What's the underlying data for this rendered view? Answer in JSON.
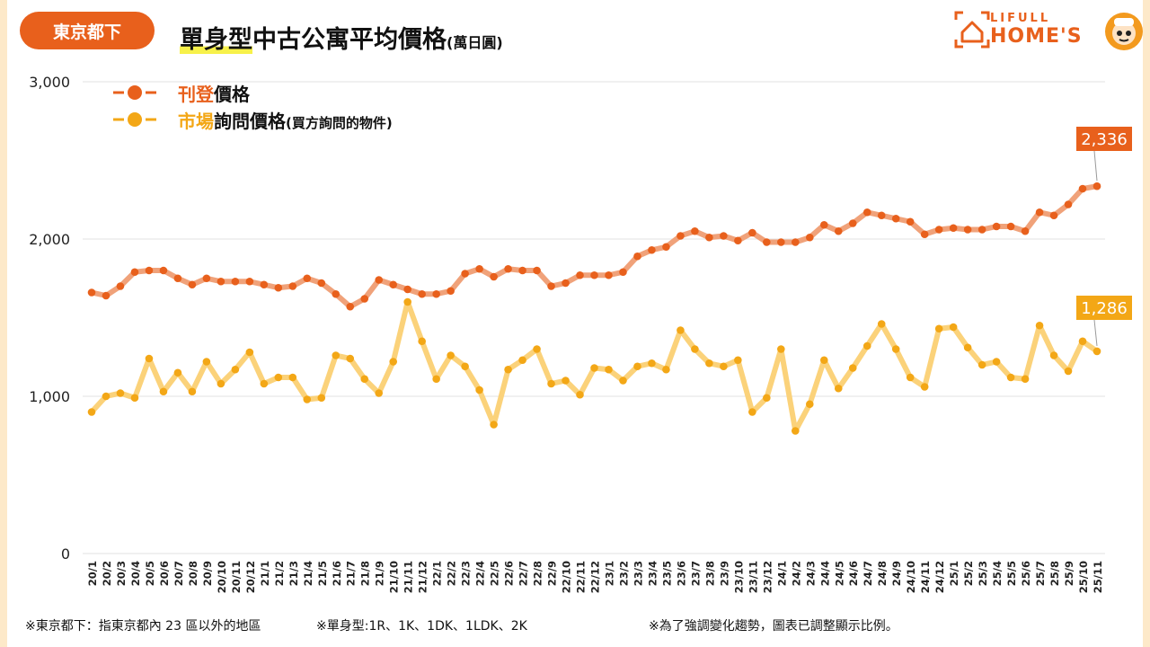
{
  "header": {
    "region_badge": "東京都下",
    "title_highlight": "單身型",
    "title_rest": "中古公寓平均價格",
    "title_unit": "(萬日圓)"
  },
  "logo": {
    "top": "LIFULL",
    "bottom": "HOME'S"
  },
  "legend": {
    "listing_prefix": "刊登",
    "listing_suffix": "價格",
    "inquiry_prefix": "市場",
    "inquiry_suffix": "詢問價格",
    "inquiry_note": "(買方詢問的物件)"
  },
  "footer": {
    "note1": "※東京都下：指東京都內 23 區以外的地區",
    "note2": "※單身型:1R、1K、1DK、1LDK、2K",
    "note3": "※為了強調變化趨勢，圖表已調整顯示比例。"
  },
  "colors": {
    "orange": "#e8601c",
    "orange_line": "#f0a27a",
    "yellow": "#f3a716",
    "yellow_line": "#fbd27a",
    "grid": "#e6e6e6"
  },
  "chart_data": {
    "type": "line",
    "ylim": [
      0,
      3000
    ],
    "yticks": [
      0,
      1000,
      2000,
      3000
    ],
    "ytick_labels": [
      "0",
      "1,000",
      "2,000",
      "3,000"
    ],
    "categories": [
      "20/1",
      "20/2",
      "20/3",
      "20/4",
      "20/5",
      "20/6",
      "20/7",
      "20/8",
      "20/9",
      "20/10",
      "20/11",
      "20/12",
      "21/1",
      "21/2",
      "21/3",
      "21/4",
      "21/5",
      "21/6",
      "21/7",
      "21/8",
      "21/9",
      "21/10",
      "21/11",
      "21/12",
      "22/1",
      "22/2",
      "22/3",
      "22/4",
      "22/5",
      "22/6",
      "22/7",
      "22/8",
      "22/9",
      "22/10",
      "22/11",
      "22/12",
      "23/1",
      "23/2",
      "23/3",
      "23/4",
      "23/5",
      "23/6",
      "23/7",
      "23/8",
      "23/9",
      "23/10",
      "23/11",
      "23/12",
      "24/1",
      "24/2",
      "24/3",
      "24/4",
      "24/5",
      "24/6",
      "24/7",
      "24/8",
      "24/9",
      "24/10",
      "24/11",
      "24/12",
      "25/1",
      "25/2",
      "25/3",
      "25/4",
      "25/5",
      "25/6",
      "25/7",
      "25/8",
      "25/9",
      "25/10",
      "25/11"
    ],
    "series": [
      {
        "name": "刊登價格",
        "end_label": "2,336",
        "values": [
          1660,
          1640,
          1700,
          1790,
          1800,
          1800,
          1750,
          1710,
          1750,
          1730,
          1730,
          1730,
          1710,
          1690,
          1700,
          1750,
          1720,
          1650,
          1570,
          1620,
          1740,
          1710,
          1680,
          1650,
          1650,
          1670,
          1780,
          1810,
          1760,
          1810,
          1800,
          1800,
          1700,
          1720,
          1770,
          1770,
          1770,
          1790,
          1890,
          1930,
          1950,
          2020,
          2050,
          2010,
          2020,
          1990,
          2040,
          1980,
          1980,
          1980,
          2010,
          2090,
          2050,
          2100,
          2170,
          2150,
          2130,
          2110,
          2030,
          2060,
          2070,
          2060,
          2060,
          2080,
          2080,
          2050,
          2170,
          2150,
          2220,
          2320,
          2336
        ]
      },
      {
        "name": "市場詢問價格",
        "end_label": "1,286",
        "values": [
          900,
          1000,
          1020,
          990,
          1240,
          1030,
          1150,
          1030,
          1220,
          1080,
          1170,
          1280,
          1080,
          1120,
          1120,
          980,
          990,
          1260,
          1240,
          1110,
          1020,
          1220,
          1600,
          1350,
          1110,
          1260,
          1190,
          1040,
          820,
          1170,
          1230,
          1300,
          1080,
          1100,
          1010,
          1180,
          1170,
          1100,
          1190,
          1210,
          1170,
          1420,
          1300,
          1210,
          1190,
          1230,
          900,
          990,
          1300,
          780,
          950,
          1230,
          1050,
          1180,
          1320,
          1460,
          1300,
          1120,
          1060,
          1430,
          1440,
          1310,
          1200,
          1220,
          1120,
          1110,
          1450,
          1260,
          1160,
          1350,
          1286
        ]
      }
    ]
  }
}
